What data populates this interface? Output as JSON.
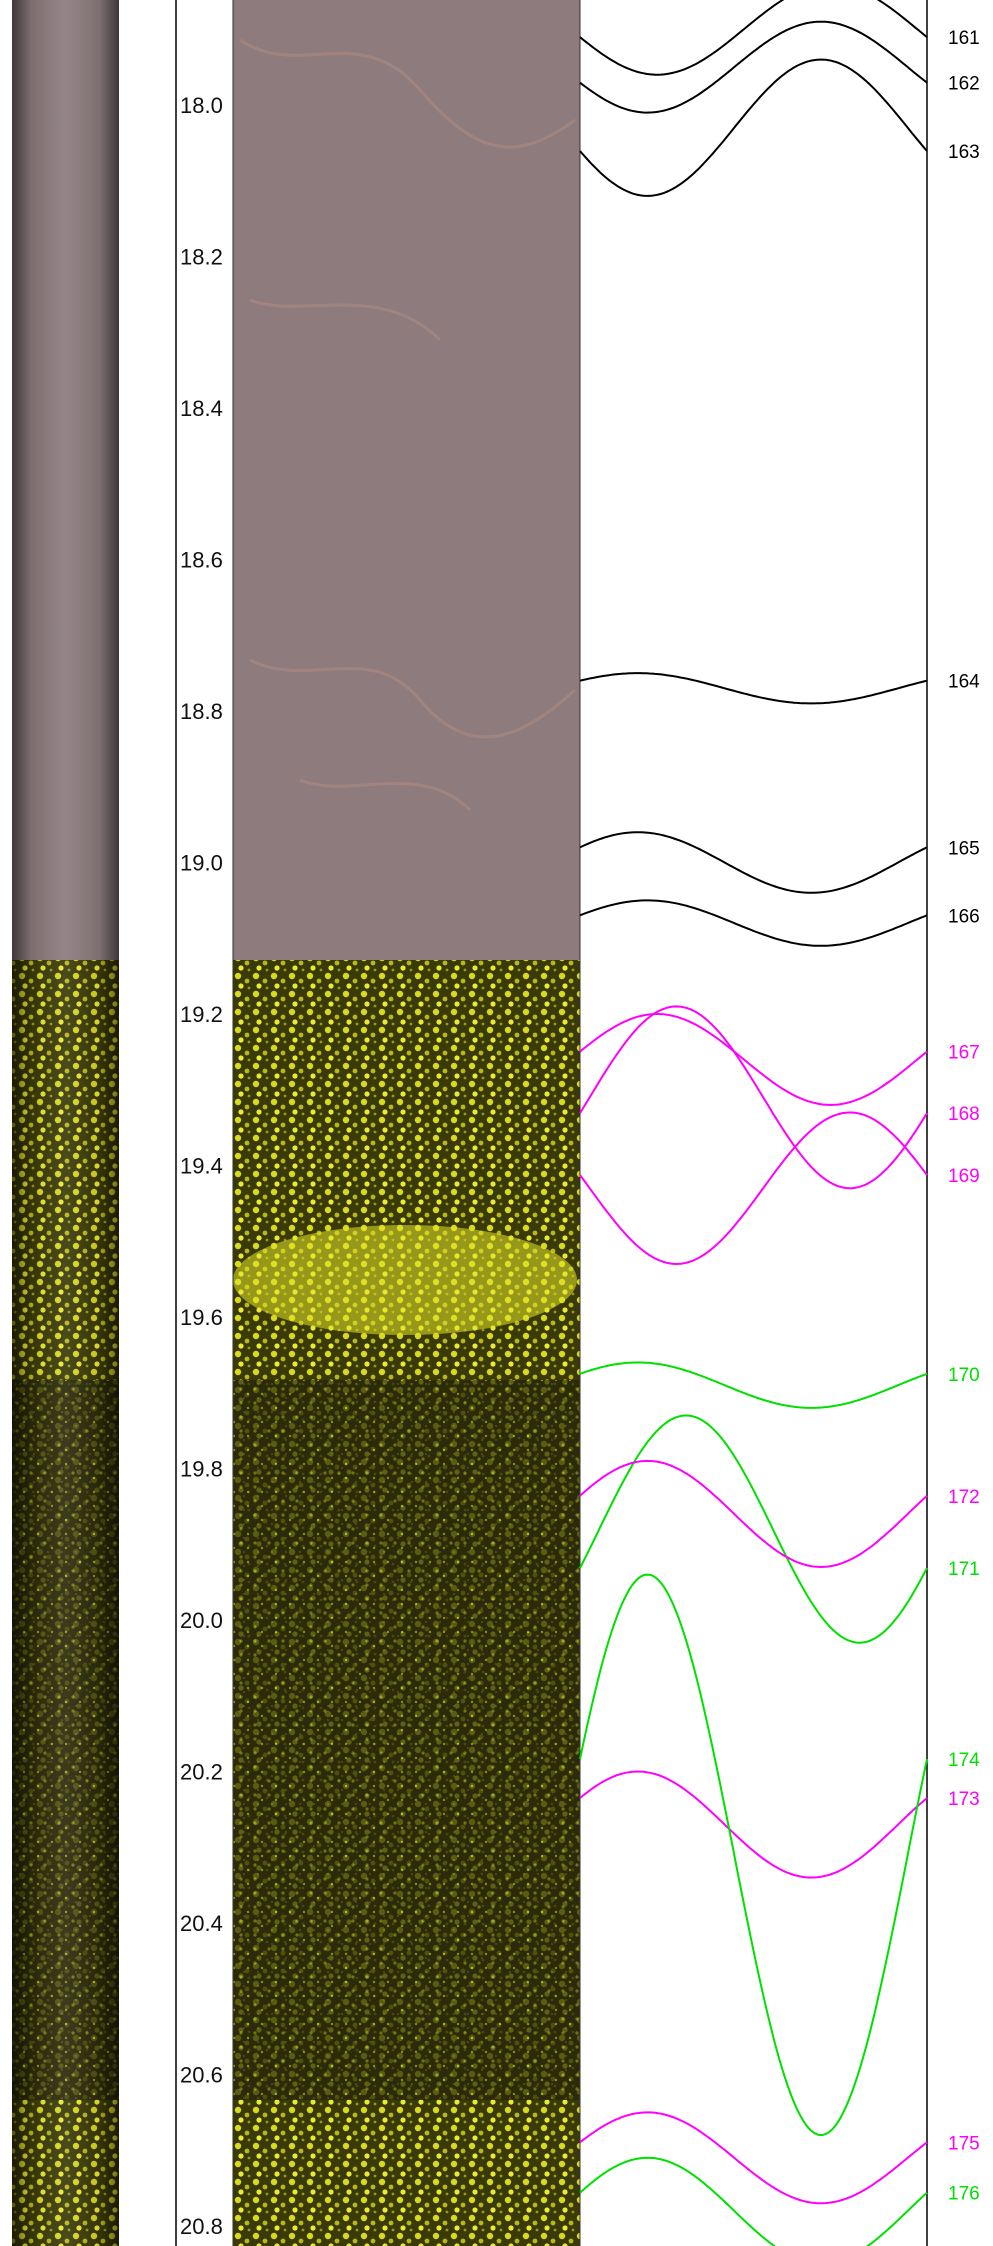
{
  "depth_axis": {
    "unit": "",
    "range": [
      17.86,
      20.82
    ],
    "ticks": [
      "18.0",
      "18.2",
      "18.4",
      "18.6",
      "18.8",
      "19.0",
      "19.2",
      "19.4",
      "19.6",
      "19.8",
      "20.0",
      "20.2",
      "20.4",
      "20.6",
      "20.8"
    ]
  },
  "image_sections": [
    {
      "name": "optical-core-image",
      "from": 17.86,
      "to": 19.13,
      "color": "#8a7878"
    },
    {
      "name": "acoustic-core-image",
      "from": 19.13,
      "to": 20.82,
      "color": "#d8d820"
    }
  ],
  "colors": {
    "black": "#000000",
    "magenta": "#ff00ff",
    "green": "#00e000",
    "yellow": "#e8e820",
    "dark": "#2a2a0a"
  },
  "features": [
    {
      "id": "161",
      "depth": 17.9,
      "amplitude": 0.06,
      "phase_deg": 10,
      "color": "black"
    },
    {
      "id": "162",
      "depth": 17.95,
      "amplitude": 0.06,
      "phase_deg": 20,
      "color": "black"
    },
    {
      "id": "163",
      "depth": 18.03,
      "amplitude": 0.09,
      "phase_deg": 20,
      "color": "black"
    },
    {
      "id": "164",
      "depth": 18.77,
      "amplitude": 0.02,
      "phase_deg": 210,
      "color": "black"
    },
    {
      "id": "165",
      "depth": 19.0,
      "amplitude": 0.04,
      "phase_deg": 210,
      "color": "black"
    },
    {
      "id": "166",
      "depth": 19.08,
      "amplitude": 0.03,
      "phase_deg": 200,
      "color": "black"
    },
    {
      "id": "167",
      "depth": 19.26,
      "amplitude": 0.06,
      "phase_deg": 190,
      "color": "magenta"
    },
    {
      "id": "168",
      "depth": 19.31,
      "amplitude": 0.12,
      "phase_deg": 170,
      "color": "magenta"
    },
    {
      "id": "169",
      "depth": 19.43,
      "amplitude": 0.1,
      "phase_deg": -10,
      "color": "magenta"
    },
    {
      "id": "170",
      "depth": 19.69,
      "amplitude": 0.03,
      "phase_deg": 210,
      "color": "green"
    },
    {
      "id": "171",
      "depth": 19.88,
      "amplitude": 0.15,
      "phase_deg": 160,
      "color": "green"
    },
    {
      "id": "172",
      "depth": 19.86,
      "amplitude": 0.07,
      "phase_deg": 200,
      "color": "magenta"
    },
    {
      "id": "173",
      "depth": 20.27,
      "amplitude": 0.07,
      "phase_deg": 210,
      "color": "magenta"
    },
    {
      "id": "174",
      "depth": 20.31,
      "amplitude": 0.37,
      "phase_deg": 200,
      "color": "green"
    },
    {
      "id": "175",
      "depth": 20.71,
      "amplitude": 0.06,
      "phase_deg": 200,
      "color": "magenta"
    },
    {
      "id": "176",
      "depth": 20.78,
      "amplitude": 0.07,
      "phase_deg": 200,
      "color": "green"
    }
  ]
}
